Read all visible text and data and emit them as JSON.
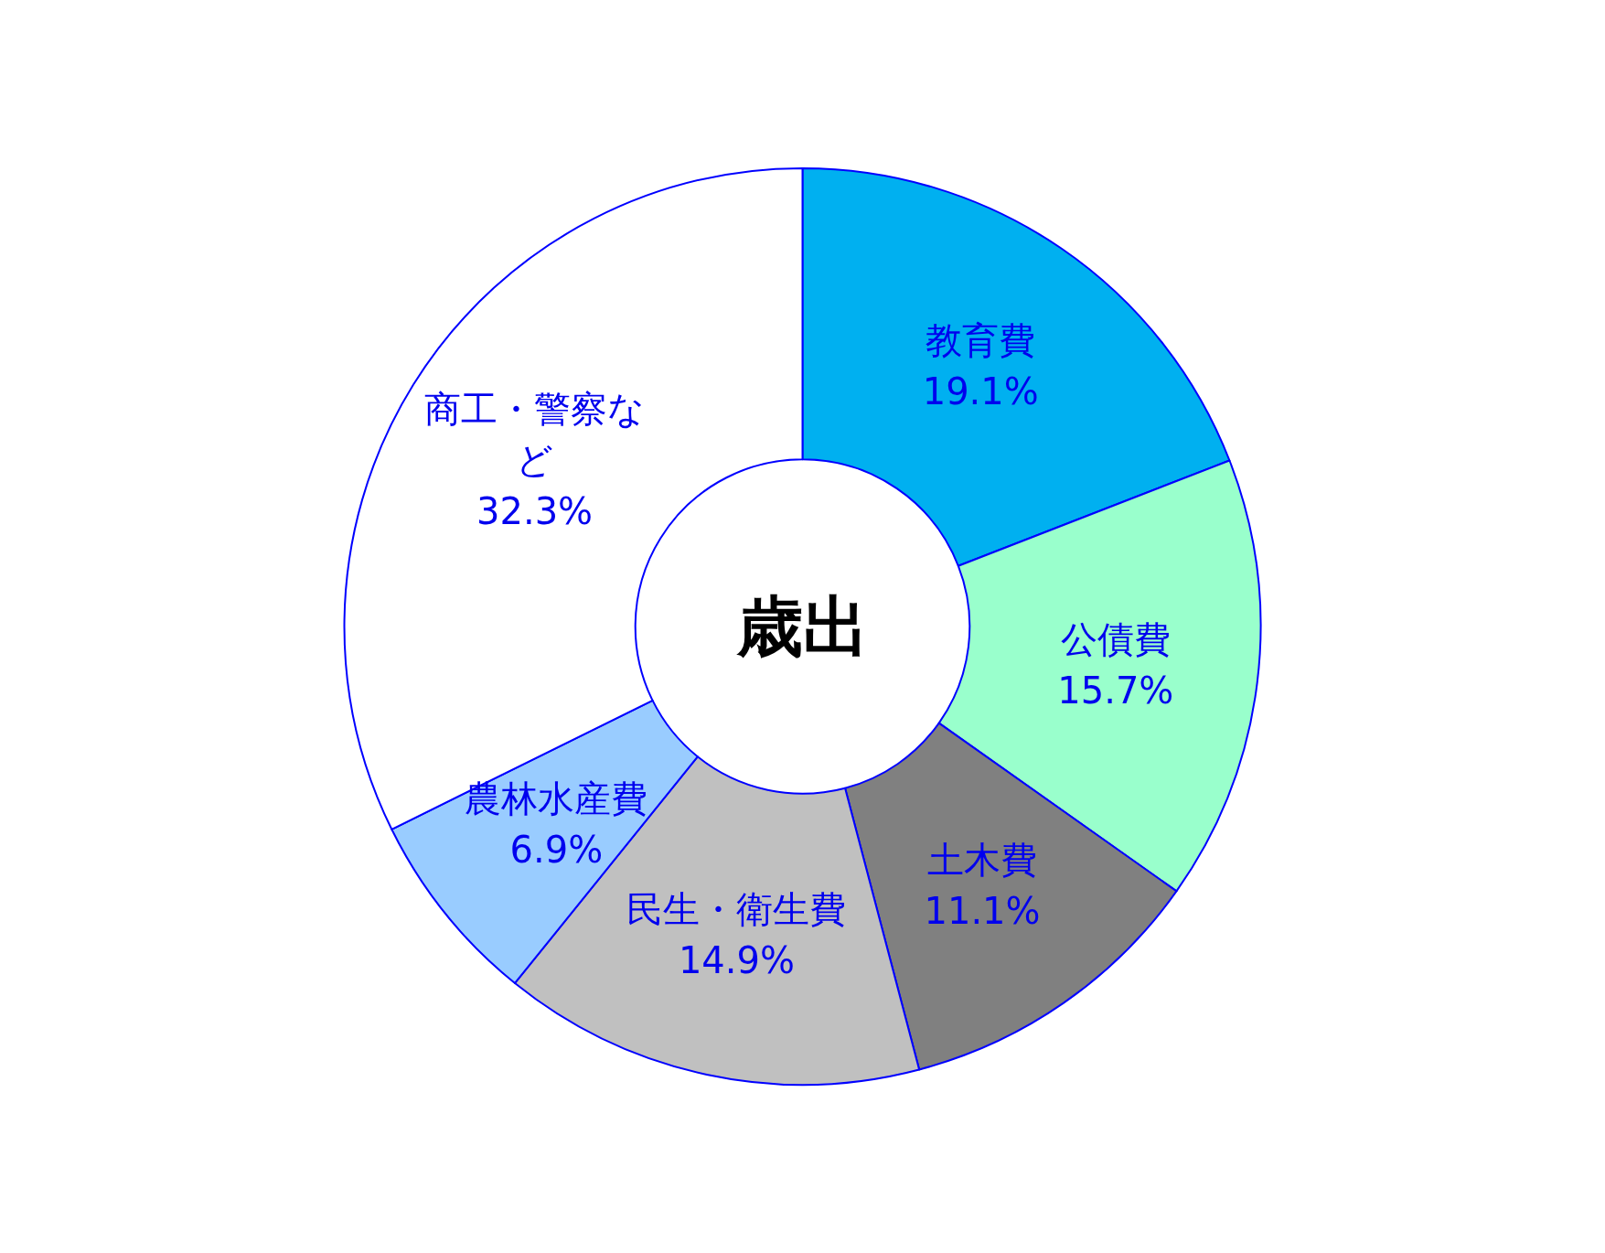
{
  "chart_data": {
    "type": "donut",
    "title": "歳出",
    "categories": [
      "教育費",
      "公債費",
      "土木費",
      "民生・衛生費",
      "農林水産費",
      "商工・警察など"
    ],
    "values": [
      19.1,
      15.7,
      11.1,
      14.9,
      6.9,
      32.3
    ],
    "value_labels": [
      "19.1%",
      "15.7%",
      "11.1%",
      "14.9%",
      "6.9%",
      "32.3%"
    ],
    "colors": [
      "#00b0f0",
      "#99ffcc",
      "#808080",
      "#c0c0c0",
      "#99ccff",
      "#ffffff"
    ],
    "legend": false
  }
}
